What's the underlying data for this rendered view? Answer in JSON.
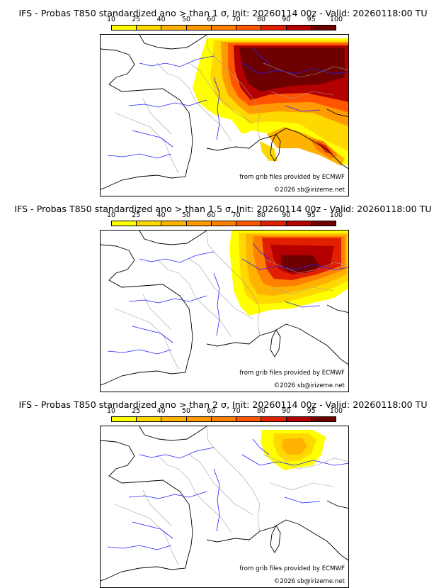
{
  "legend": {
    "ticks": [
      "10",
      "25",
      "40",
      "50",
      "60",
      "70",
      "80",
      "90",
      "95",
      "100"
    ],
    "colors": [
      "#ffff00",
      "#ffd800",
      "#ffb300",
      "#ff9a00",
      "#ff7f00",
      "#ff5500",
      "#e02000",
      "#b40000",
      "#6e0000"
    ]
  },
  "colors": {
    "coast": "#000000",
    "river": "#2020ff",
    "borders": "#a0a0a0"
  },
  "panels": [
    {
      "title": "IFS - Probas T850  standardized ano > than 1 σ, Init: 20260114 00z - Valid: 20260118:00 TU",
      "credit_source": "from grib files provided by ECMWF",
      "credit_copyright": "©2026 sb@irizeme.net"
    },
    {
      "title": "IFS - Probas T850  standardized ano > than 1.5 σ, Init: 20260114 00z - Valid: 20260118:00 TU",
      "credit_source": "from grib files provided by ECMWF",
      "credit_copyright": "©2026 sb@irizeme.net"
    },
    {
      "title": "IFS - Probas T850  standardized ano > than 2 σ, Init: 20260114 00z - Valid: 20260118:00 TU",
      "credit_source": "from grib files provided by ECMWF",
      "credit_copyright": "©2026 sb@irizeme.net"
    }
  ]
}
